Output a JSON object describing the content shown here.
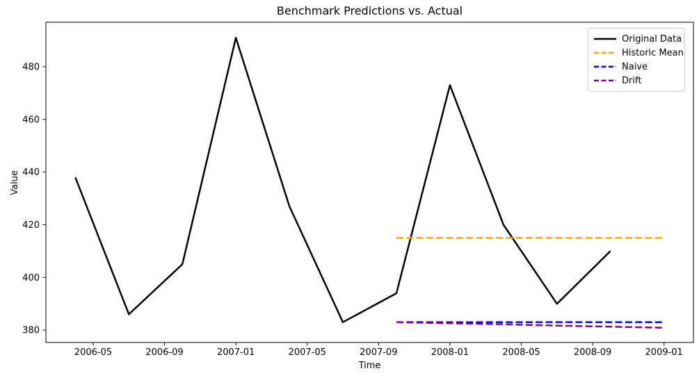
{
  "chart_data": {
    "type": "line",
    "title": "Benchmark Predictions vs. Actual",
    "xlabel": "Time",
    "ylabel": "Value",
    "grid": false,
    "legend_position": "upper right",
    "xlim_months": [
      1.35,
      37.65
    ],
    "ylim": [
      375.3,
      496.9
    ],
    "x_ticks": [
      {
        "month": 4,
        "label": "2006-05"
      },
      {
        "month": 8,
        "label": "2006-09"
      },
      {
        "month": 12,
        "label": "2007-01"
      },
      {
        "month": 16,
        "label": "2007-05"
      },
      {
        "month": 20,
        "label": "2007-09"
      },
      {
        "month": 24,
        "label": "2008-01"
      },
      {
        "month": 28,
        "label": "2008-05"
      },
      {
        "month": 32,
        "label": "2008-09"
      },
      {
        "month": 36,
        "label": "2009-01"
      }
    ],
    "y_ticks": [
      380,
      400,
      420,
      440,
      460,
      480
    ],
    "series": [
      {
        "name": "Original Data",
        "color": "#000000",
        "line_style": "solid",
        "x": [
          "2006-04",
          "2006-07",
          "2006-10",
          "2007-01",
          "2007-04",
          "2007-07",
          "2007-10",
          "2008-01",
          "2008-04",
          "2008-07",
          "2008-10"
        ],
        "x_months": [
          3,
          6,
          9,
          12,
          15,
          18,
          21,
          24,
          27,
          30,
          33
        ],
        "values": [
          438,
          386,
          405,
          491,
          427,
          383,
          394,
          473,
          420,
          390,
          410
        ]
      },
      {
        "name": "Historic Mean",
        "color": "#FFA500",
        "line_style": "dashed",
        "x": [
          "2007-10",
          "2008-01",
          "2008-04",
          "2008-07",
          "2008-10",
          "2009-01"
        ],
        "x_months": [
          21,
          24,
          27,
          30,
          33,
          36
        ],
        "values": [
          415,
          415,
          415,
          415,
          415,
          415
        ]
      },
      {
        "name": "Naive",
        "color": "#0000FF",
        "line_style": "dashed",
        "x": [
          "2007-10",
          "2008-01",
          "2008-04",
          "2008-07",
          "2008-10",
          "2009-01"
        ],
        "x_months": [
          21,
          24,
          27,
          30,
          33,
          36
        ],
        "values": [
          383,
          383,
          383,
          383,
          383,
          383
        ]
      },
      {
        "name": "Drift",
        "color": "#800080",
        "line_style": "dashed",
        "x": [
          "2007-10",
          "2008-01",
          "2008-04",
          "2008-07",
          "2008-10",
          "2009-01"
        ],
        "x_months": [
          21,
          24,
          27,
          30,
          33,
          36
        ],
        "values": [
          383,
          382.6,
          382.2,
          381.7,
          381.3,
          380.9
        ]
      }
    ]
  }
}
